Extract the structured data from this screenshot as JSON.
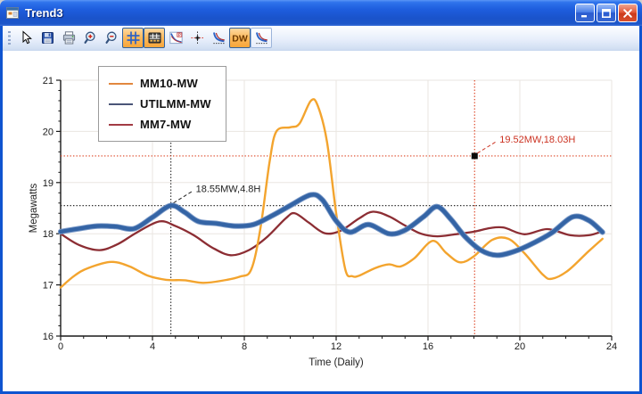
{
  "window": {
    "title": "Trend3"
  },
  "toolbar": {
    "items": [
      {
        "id": "select",
        "icon": "cursor",
        "active": false,
        "raised": false
      },
      {
        "id": "save",
        "icon": "save",
        "active": false,
        "raised": false
      },
      {
        "id": "print",
        "icon": "printer",
        "active": false,
        "raised": false
      },
      {
        "id": "zoom-in",
        "icon": "zoom-in",
        "active": false,
        "raised": false
      },
      {
        "id": "zoom-out",
        "icon": "zoom-out",
        "active": false,
        "raised": false
      },
      {
        "id": "grid",
        "icon": "grid",
        "active": true,
        "raised": false
      },
      {
        "id": "values-table",
        "icon": "table",
        "active": true,
        "raised": false
      },
      {
        "id": "profile",
        "icon": "chart-profile",
        "active": false,
        "raised": false
      },
      {
        "id": "crosshair",
        "icon": "crosshair",
        "active": false,
        "raised": false
      },
      {
        "id": "trend-curves",
        "icon": "curves",
        "active": false,
        "raised": false
      },
      {
        "id": "dw",
        "icon": "dw",
        "label": "DW",
        "active": true,
        "raised": false
      },
      {
        "id": "trend-curves-2",
        "icon": "curves",
        "active": false,
        "raised": true
      }
    ]
  },
  "chart_data": {
    "type": "line",
    "xlabel": "Time (Daily)",
    "ylabel": "Megawatts",
    "xlim": [
      0,
      24
    ],
    "ylim": [
      16,
      21
    ],
    "xticks": [
      0,
      4,
      8,
      12,
      16,
      20,
      24
    ],
    "yticks": [
      16,
      17,
      18,
      19,
      20,
      21
    ],
    "x_minor_step": 1,
    "y_minor_step": 0.2,
    "grid": true,
    "grid_color": "#eae6e1",
    "axis_color": "#1a1a1a",
    "legend_position": "top-left",
    "series": [
      {
        "name": "MM10-MW",
        "color": "#f3a42e",
        "legend_color": "#e2873e",
        "width": 2.4,
        "points": [
          [
            0,
            16.95
          ],
          [
            0.6,
            17.18
          ],
          [
            1.2,
            17.33
          ],
          [
            2.2,
            17.45
          ],
          [
            3,
            17.36
          ],
          [
            3.8,
            17.18
          ],
          [
            4.6,
            17.1
          ],
          [
            5.4,
            17.09
          ],
          [
            6.2,
            17.04
          ],
          [
            7,
            17.08
          ],
          [
            7.8,
            17.16
          ],
          [
            8.3,
            17.3
          ],
          [
            8.7,
            18.1
          ],
          [
            9.1,
            19.4
          ],
          [
            9.4,
            20.0
          ],
          [
            10,
            20.08
          ],
          [
            10.4,
            20.15
          ],
          [
            10.9,
            20.6
          ],
          [
            11.2,
            20.5
          ],
          [
            11.6,
            19.8
          ],
          [
            12,
            18.4
          ],
          [
            12.4,
            17.3
          ],
          [
            12.7,
            17.17
          ],
          [
            13,
            17.18
          ],
          [
            13.7,
            17.33
          ],
          [
            14.3,
            17.4
          ],
          [
            14.8,
            17.36
          ],
          [
            15.4,
            17.52
          ],
          [
            16.2,
            17.86
          ],
          [
            16.8,
            17.62
          ],
          [
            17.4,
            17.44
          ],
          [
            18,
            17.56
          ],
          [
            18.8,
            17.88
          ],
          [
            19.5,
            17.9
          ],
          [
            20.2,
            17.62
          ],
          [
            21,
            17.2
          ],
          [
            21.4,
            17.12
          ],
          [
            22.1,
            17.28
          ],
          [
            23,
            17.66
          ],
          [
            23.6,
            17.9
          ]
        ]
      },
      {
        "name": "UTILMM-MW",
        "color": "#3464a5",
        "legend_color": "#4a5578",
        "outline": "#7e9cc9",
        "width": 4.4,
        "points": [
          [
            0,
            18.04
          ],
          [
            0.8,
            18.1
          ],
          [
            1.6,
            18.15
          ],
          [
            2.4,
            18.14
          ],
          [
            3.2,
            18.1
          ],
          [
            4,
            18.32
          ],
          [
            4.8,
            18.55
          ],
          [
            5.4,
            18.42
          ],
          [
            6,
            18.24
          ],
          [
            6.8,
            18.2
          ],
          [
            7.6,
            18.15
          ],
          [
            8.4,
            18.18
          ],
          [
            9.2,
            18.35
          ],
          [
            10,
            18.55
          ],
          [
            10.9,
            18.76
          ],
          [
            11.4,
            18.66
          ],
          [
            12,
            18.25
          ],
          [
            12.6,
            18.03
          ],
          [
            13.4,
            18.18
          ],
          [
            14.3,
            18.0
          ],
          [
            15,
            18.07
          ],
          [
            15.8,
            18.33
          ],
          [
            16.4,
            18.53
          ],
          [
            17,
            18.28
          ],
          [
            17.6,
            17.95
          ],
          [
            18.3,
            17.68
          ],
          [
            19,
            17.58
          ],
          [
            19.8,
            17.66
          ],
          [
            20.6,
            17.82
          ],
          [
            21.4,
            18.02
          ],
          [
            22.3,
            18.33
          ],
          [
            23,
            18.26
          ],
          [
            23.6,
            18.03
          ]
        ]
      },
      {
        "name": "MM7-MW",
        "color": "#8c2d33",
        "legend_color": "#a23b44",
        "width": 2.3,
        "points": [
          [
            0,
            18.0
          ],
          [
            0.8,
            17.78
          ],
          [
            1.7,
            17.68
          ],
          [
            2.5,
            17.8
          ],
          [
            3.3,
            18.02
          ],
          [
            4.3,
            18.24
          ],
          [
            5,
            18.15
          ],
          [
            5.8,
            17.97
          ],
          [
            6.6,
            17.73
          ],
          [
            7.4,
            17.58
          ],
          [
            8.2,
            17.68
          ],
          [
            9,
            17.94
          ],
          [
            9.8,
            18.3
          ],
          [
            10.2,
            18.4
          ],
          [
            10.8,
            18.22
          ],
          [
            11.5,
            18.01
          ],
          [
            12.2,
            18.06
          ],
          [
            13,
            18.3
          ],
          [
            13.6,
            18.43
          ],
          [
            14.3,
            18.34
          ],
          [
            15,
            18.16
          ],
          [
            15.7,
            18.0
          ],
          [
            16.4,
            17.95
          ],
          [
            17.2,
            17.99
          ],
          [
            18,
            18.04
          ],
          [
            18.7,
            18.11
          ],
          [
            19.3,
            18.12
          ],
          [
            20.2,
            17.99
          ],
          [
            21.2,
            18.09
          ],
          [
            22.2,
            17.97
          ],
          [
            23,
            17.97
          ],
          [
            23.6,
            18.05
          ]
        ]
      }
    ],
    "cursors": [
      {
        "x": 4.8,
        "y": 18.55,
        "label": "18.55MW,4.8H",
        "line_color": "#2b2b2b",
        "label_color": "#222222",
        "marker": false
      },
      {
        "x": 18.03,
        "y": 19.52,
        "label": "19.52MW,18.03H",
        "line_color": "#dd4424",
        "label_color": "#cc3322",
        "marker": true
      }
    ]
  }
}
